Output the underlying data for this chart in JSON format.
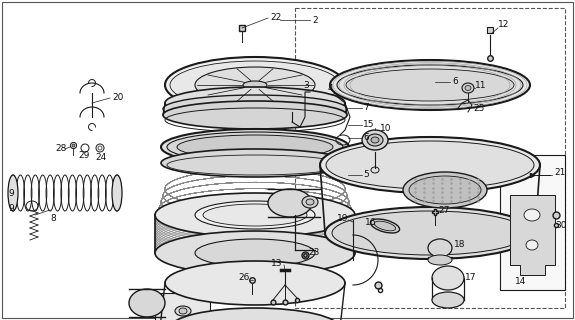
{
  "bg_color": "#ffffff",
  "line_color": "#1a1a1a",
  "text_color": "#111111",
  "fig_width": 5.75,
  "fig_height": 3.2,
  "dpi": 100
}
